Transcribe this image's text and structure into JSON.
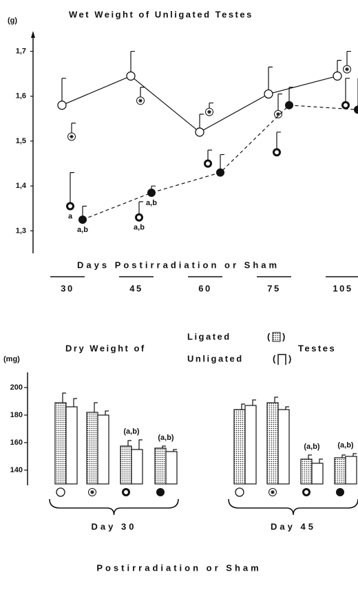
{
  "chart_data": [
    {
      "type": "line",
      "title": "Wet Weight of Unligated Testes",
      "y_unit": "(g)",
      "xlabel": "Days Postirradiation or Sham",
      "categories": [
        "30",
        "45",
        "60",
        "75",
        "105"
      ],
      "ylim": [
        1.25,
        1.73
      ],
      "yticks": [
        {
          "value": 1.3,
          "label": "1,3"
        },
        {
          "value": 1.4,
          "label": "1,4"
        },
        {
          "value": 1.5,
          "label": "1,5"
        },
        {
          "value": 1.6,
          "label": "1,6"
        },
        {
          "value": 1.7,
          "label": "1,7"
        }
      ],
      "series": [
        {
          "marker": "open",
          "linestyle": "solid",
          "color": "#111",
          "values": [
            1.58,
            1.645,
            1.52,
            1.605,
            1.645
          ],
          "errors": [
            0.06,
            0.055,
            0.04,
            0.06,
            0.035
          ],
          "point_labels": [
            null,
            null,
            null,
            null,
            null
          ]
        },
        {
          "marker": "hatched",
          "linestyle": "none",
          "color": "#111",
          "values": [
            1.51,
            1.59,
            1.565,
            1.56,
            1.66
          ],
          "errors": [
            0.03,
            0.03,
            0.02,
            0.045,
            0.04
          ],
          "point_labels": [
            null,
            null,
            null,
            null,
            null
          ]
        },
        {
          "marker": "ring",
          "linestyle": "none",
          "color": "#111",
          "values": [
            1.355,
            1.33,
            1.45,
            1.475,
            1.58
          ],
          "errors": [
            0.075,
            0.035,
            0.03,
            0.045,
            0.06
          ],
          "point_labels": [
            "a",
            "a,b",
            null,
            null,
            null
          ]
        },
        {
          "marker": "filled",
          "linestyle": "dashed",
          "color": "#111",
          "values": [
            1.325,
            1.385,
            1.43,
            1.58,
            1.57
          ],
          "errors": [
            0.03,
            0.015,
            0.04,
            0.04,
            0.07
          ],
          "point_labels": [
            "a,b",
            "a,b",
            null,
            null,
            null
          ]
        }
      ]
    },
    {
      "type": "bar",
      "title": "Dry Weight of",
      "title_suffix": "Testes",
      "y_unit": "(mg)",
      "xlabel": "Postirradiation or Sham",
      "group_labels": [
        "Day 30",
        "Day 45"
      ],
      "categories": [
        null,
        null,
        null,
        null,
        null,
        null,
        null,
        null
      ],
      "ylim": [
        130,
        205
      ],
      "yticks": [
        140,
        160,
        180,
        200
      ],
      "bar_labels": [
        null,
        null,
        "(a,b)",
        "(a,b)",
        null,
        null,
        "(a,b)",
        "(a,b)"
      ],
      "series": [
        {
          "name": "Ligated",
          "fill": "stippled",
          "values": [
            189,
            182,
            157.5,
            156,
            184,
            189,
            148,
            149
          ],
          "errors": [
            7,
            7,
            4,
            1.5,
            4,
            4,
            3,
            2
          ]
        },
        {
          "name": "Unligated",
          "fill": "open",
          "values": [
            186,
            180,
            155,
            153.5,
            187,
            184,
            145,
            150
          ],
          "errors": [
            6,
            3,
            7,
            1.5,
            4,
            2,
            3,
            2
          ]
        }
      ]
    }
  ]
}
